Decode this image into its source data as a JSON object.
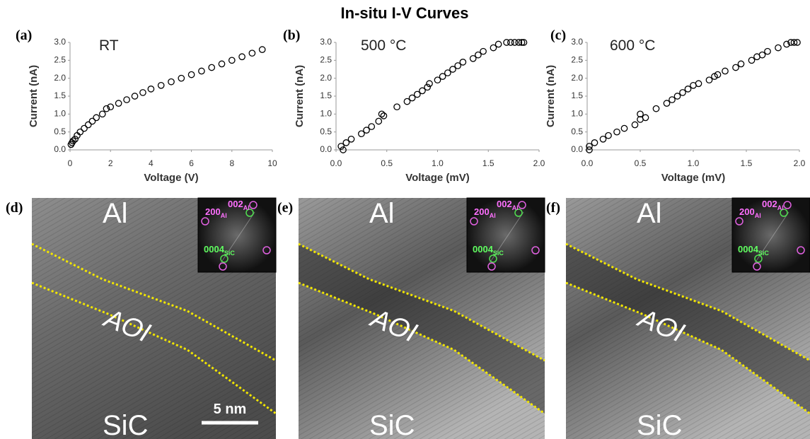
{
  "title": "In-situ I-V Curves",
  "chart_data": [
    {
      "type": "scatter",
      "panel": "(a)",
      "annotation": "RT",
      "xlabel": "Voltage (V)",
      "ylabel": "Current (nA)",
      "x": [
        0.05,
        0.1,
        0.15,
        0.25,
        0.35,
        0.5,
        0.7,
        0.9,
        1.1,
        1.3,
        1.6,
        1.8,
        2.0,
        2.4,
        2.8,
        3.2,
        3.6,
        4.0,
        4.5,
        5.0,
        5.5,
        6.0,
        6.5,
        7.0,
        7.5,
        8.0,
        8.5,
        9.0,
        9.5
      ],
      "y": [
        0.15,
        0.2,
        0.25,
        0.3,
        0.4,
        0.5,
        0.6,
        0.7,
        0.8,
        0.9,
        1.0,
        1.15,
        1.2,
        1.3,
        1.4,
        1.5,
        1.6,
        1.7,
        1.8,
        1.9,
        2.0,
        2.1,
        2.2,
        2.3,
        2.4,
        2.5,
        2.6,
        2.7,
        2.8
      ],
      "color": "#000000",
      "xlim": [
        0,
        10
      ],
      "xticks": [
        0,
        2,
        4,
        6,
        8,
        10
      ],
      "ylim": [
        0,
        3
      ],
      "yticks": [
        {
          "value": 0,
          "label": "0.0"
        },
        {
          "value": 0.5,
          "label": "0.5"
        },
        {
          "value": 1,
          "label": "1.0"
        },
        {
          "value": 1.5,
          "label": "1.5"
        },
        {
          "value": 2,
          "label": "2.0"
        },
        {
          "value": 2.5,
          "label": "2.5"
        },
        {
          "value": 3,
          "label": "3.0"
        }
      ]
    },
    {
      "type": "scatter",
      "panel": "(b)",
      "annotation": "500 °C",
      "xlabel": "Voltage (mV)",
      "ylabel": "Current (nA)",
      "x": [
        0.07,
        0.05,
        0.1,
        0.15,
        0.25,
        0.3,
        0.35,
        0.42,
        0.45,
        0.47,
        0.6,
        0.7,
        0.75,
        0.8,
        0.85,
        0.9,
        0.92,
        1.0,
        1.05,
        1.1,
        1.15,
        1.2,
        1.25,
        1.35,
        1.4,
        1.45,
        1.55,
        1.6,
        1.68,
        1.72,
        1.76,
        1.8,
        1.83,
        1.85
      ],
      "y": [
        0.0,
        0.1,
        0.2,
        0.3,
        0.45,
        0.55,
        0.65,
        0.8,
        1.0,
        0.95,
        1.2,
        1.35,
        1.45,
        1.55,
        1.65,
        1.75,
        1.85,
        1.95,
        2.05,
        2.15,
        2.25,
        2.35,
        2.45,
        2.55,
        2.65,
        2.75,
        2.85,
        2.95,
        3.0,
        3.0,
        3.0,
        3.0,
        3.0,
        3.0
      ],
      "color": "#000000",
      "xlim": [
        0,
        2
      ],
      "xticks": [
        {
          "value": 0,
          "label": "0.0"
        },
        {
          "value": 0.5,
          "label": "0.5"
        },
        {
          "value": 1,
          "label": "1.0"
        },
        {
          "value": 1.5,
          "label": "1.5"
        },
        {
          "value": 2,
          "label": "2.0"
        }
      ],
      "ylim": [
        0,
        3
      ],
      "yticks": [
        {
          "value": 0,
          "label": "0.0"
        },
        {
          "value": 0.5,
          "label": "0.5"
        },
        {
          "value": 1,
          "label": "1.0"
        },
        {
          "value": 1.5,
          "label": "1.5"
        },
        {
          "value": 2,
          "label": "2.0"
        },
        {
          "value": 2.5,
          "label": "2.5"
        },
        {
          "value": 3,
          "label": "3.0"
        }
      ]
    },
    {
      "type": "scatter",
      "panel": "(c)",
      "annotation": "600 °C",
      "xlabel": "Voltage (mV)",
      "ylabel": "Current (nA)",
      "x": [
        0.02,
        0.02,
        0.07,
        0.15,
        0.2,
        0.28,
        0.35,
        0.45,
        0.5,
        0.5,
        0.55,
        0.65,
        0.75,
        0.8,
        0.85,
        0.9,
        0.95,
        1.0,
        1.05,
        1.15,
        1.2,
        1.23,
        1.3,
        1.4,
        1.45,
        1.55,
        1.6,
        1.65,
        1.7,
        1.8,
        1.88,
        1.92,
        1.95,
        1.98
      ],
      "y": [
        0.0,
        0.1,
        0.2,
        0.3,
        0.4,
        0.5,
        0.6,
        0.7,
        0.85,
        1.0,
        0.9,
        1.15,
        1.3,
        1.4,
        1.5,
        1.6,
        1.7,
        1.8,
        1.85,
        1.95,
        2.05,
        2.1,
        2.2,
        2.3,
        2.4,
        2.5,
        2.6,
        2.65,
        2.75,
        2.85,
        2.95,
        3.0,
        3.0,
        3.0
      ],
      "color": "#000000",
      "xlim": [
        0,
        2
      ],
      "xticks": [
        {
          "value": 0,
          "label": "0.0"
        },
        {
          "value": 0.5,
          "label": "0.5"
        },
        {
          "value": 1,
          "label": "1.0"
        },
        {
          "value": 1.5,
          "label": "1.5"
        },
        {
          "value": 2,
          "label": "2.0"
        }
      ],
      "ylim": [
        0,
        3
      ],
      "yticks": [
        {
          "value": 0,
          "label": "0.0"
        },
        {
          "value": 0.5,
          "label": "0.5"
        },
        {
          "value": 1,
          "label": "1.0"
        },
        {
          "value": 1.5,
          "label": "1.5"
        },
        {
          "value": 2,
          "label": "2.0"
        },
        {
          "value": 2.5,
          "label": "2.5"
        },
        {
          "value": 3,
          "label": "3.0"
        }
      ]
    }
  ],
  "images": [
    {
      "panel": "(d)",
      "top": "Al",
      "middle": "AOI",
      "bottom": "SiC",
      "scale_bar": "5 nm",
      "fft": [
        {
          "main": "002",
          "sub": "Al"
        },
        {
          "main": "200",
          "sub": "Al"
        },
        {
          "main": "0004",
          "sub": "SiC"
        }
      ]
    },
    {
      "panel": "(e)",
      "top": "Al",
      "middle": "AOI",
      "bottom": "SiC",
      "fft": [
        {
          "main": "002",
          "sub": "Al"
        },
        {
          "main": "200",
          "sub": "Al"
        },
        {
          "main": "0004",
          "sub": "SiC"
        }
      ]
    },
    {
      "panel": "(f)",
      "top": "Al",
      "middle": "AOI",
      "bottom": "SiC",
      "fft": [
        {
          "main": "002",
          "sub": "Al"
        },
        {
          "main": "200",
          "sub": "Al"
        },
        {
          "main": "0004",
          "sub": "SiC"
        }
      ]
    }
  ]
}
